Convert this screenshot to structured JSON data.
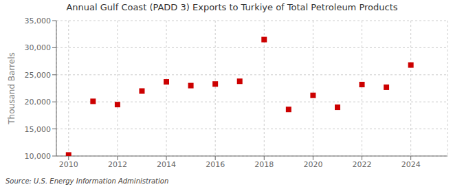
{
  "chart_data": {
    "type": "scatter",
    "title": "Annual Gulf Coast (PADD 3) Exports to Turkiye of Total Petroleum Products",
    "ylabel": "Thousand Barrels",
    "annotations": [
      "Source: U.S. Energy Information Administration"
    ],
    "x": [
      2010,
      2011,
      2012,
      2013,
      2014,
      2015,
      2016,
      2017,
      2018,
      2019,
      2020,
      2021,
      2022,
      2023,
      2024
    ],
    "values": [
      10200,
      20100,
      19500,
      22000,
      23700,
      23000,
      23300,
      23800,
      31500,
      18600,
      21200,
      19000,
      23200,
      22700,
      26800
    ],
    "color": "#cc0000",
    "marker": "square",
    "xlim": [
      2009.5,
      2025.5
    ],
    "xticks": [
      2010,
      2012,
      2014,
      2016,
      2018,
      2020,
      2022,
      2024
    ],
    "ylim": [
      10000,
      35000
    ],
    "yticks": [
      {
        "value": 10000,
        "label": "10,000"
      },
      {
        "value": 15000,
        "label": "15,000"
      },
      {
        "value": 20000,
        "label": "20,000"
      },
      {
        "value": 25000,
        "label": "25,000"
      },
      {
        "value": 30000,
        "label": "30,000"
      },
      {
        "value": 35000,
        "label": "35,000"
      }
    ],
    "grid": true
  }
}
